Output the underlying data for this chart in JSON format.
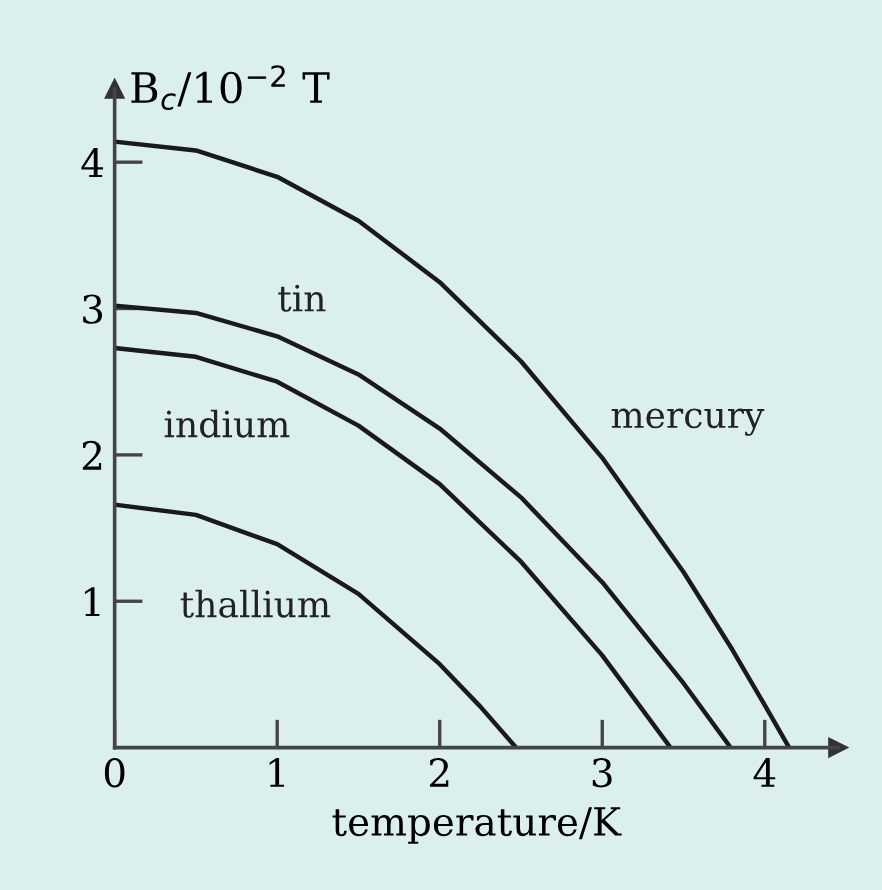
{
  "chart_data": {
    "type": "line",
    "xlabel": "temperature/K",
    "ylabel": "B$_{c}$/10$^{−2}$ T",
    "xlim": [
      0,
      4.45
    ],
    "ylim": [
      0,
      4.5
    ],
    "xticks": [
      0,
      1,
      2,
      3,
      4
    ],
    "yticks": [
      1,
      2,
      3,
      4
    ],
    "grid": false,
    "legend": false,
    "marker": "none",
    "line_style": "solid",
    "series": [
      {
        "name": "mercury",
        "color": "#1a1a1a",
        "x": [
          0,
          0.5,
          1.0,
          1.5,
          2.0,
          2.5,
          3.0,
          3.5,
          3.8,
          4.0,
          4.15
        ],
        "values": [
          4.14,
          4.08,
          3.9,
          3.6,
          3.18,
          2.64,
          1.98,
          1.2,
          0.67,
          0.29,
          0
        ]
      },
      {
        "name": "tin",
        "color": "#1a1a1a",
        "x": [
          0,
          0.5,
          1.0,
          1.5,
          2.0,
          2.5,
          3.0,
          3.5,
          3.79
        ],
        "values": [
          3.02,
          2.97,
          2.81,
          2.55,
          2.18,
          1.71,
          1.13,
          0.44,
          0
        ]
      },
      {
        "name": "indium",
        "color": "#1a1a1a",
        "x": [
          0,
          0.5,
          1.0,
          1.5,
          2.0,
          2.5,
          3.0,
          3.42
        ],
        "values": [
          2.73,
          2.67,
          2.5,
          2.2,
          1.8,
          1.27,
          0.63,
          0
        ]
      },
      {
        "name": "thallium",
        "color": "#1a1a1a",
        "x": [
          0,
          0.5,
          1.0,
          1.5,
          2.0,
          2.25,
          2.47
        ],
        "values": [
          1.66,
          1.59,
          1.39,
          1.05,
          0.57,
          0.28,
          0
        ]
      }
    ]
  }
}
